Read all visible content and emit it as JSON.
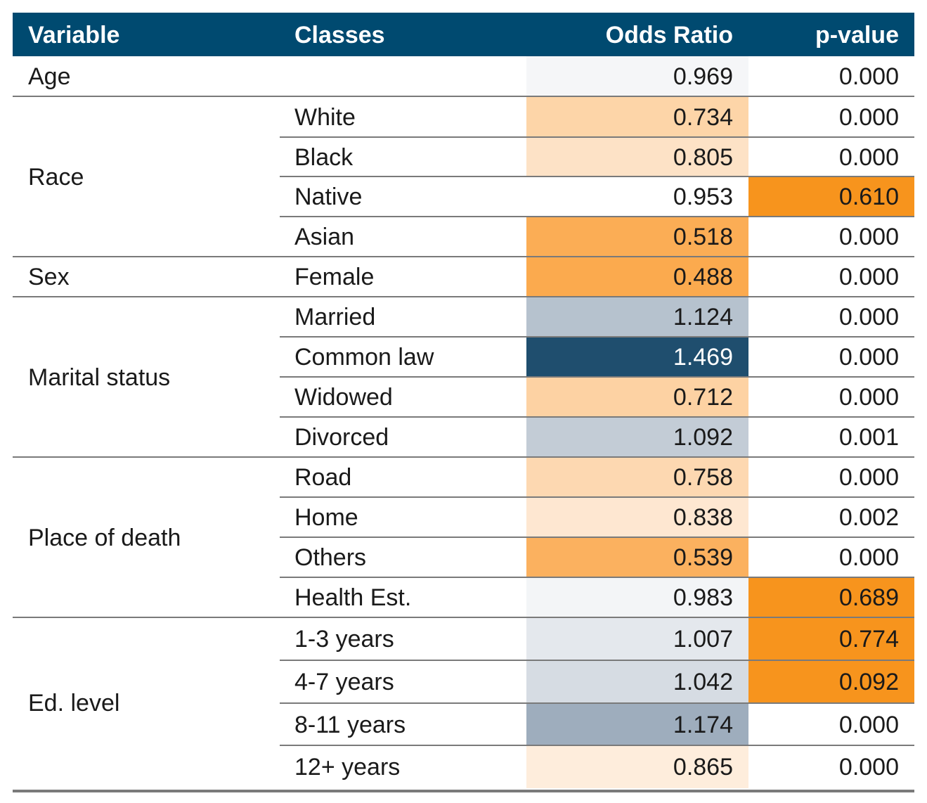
{
  "headers": {
    "variable": "Variable",
    "classes": "Classes",
    "odds_ratio": "Odds Ratio",
    "p_value": "p-value"
  },
  "colors": {
    "header_bg": "#004a70",
    "header_text": "#ffffff",
    "highlight_pvalue": "#f7941d",
    "dark_or": "#1f4e79"
  },
  "groups": [
    {
      "variable": "Age",
      "rows": [
        {
          "class": "",
          "or": "0.969",
          "p": "0.000",
          "or_bg": "#f5f6f8",
          "p_bg": ""
        }
      ]
    },
    {
      "variable": "Race",
      "rows": [
        {
          "class": "White",
          "or": "0.734",
          "p": "0.000",
          "or_bg": "#fdd5a8",
          "p_bg": ""
        },
        {
          "class": "Black",
          "or": "0.805",
          "p": "0.000",
          "or_bg": "#fde2c6",
          "p_bg": ""
        },
        {
          "class": "Native",
          "or": "0.953",
          "p": "0.610",
          "or_bg": "",
          "p_bg": "#f7941d"
        },
        {
          "class": "Asian",
          "or": "0.518",
          "p": "0.000",
          "or_bg": "#fbad55",
          "p_bg": ""
        }
      ]
    },
    {
      "variable": "Sex",
      "rows": [
        {
          "class": "Female",
          "or": "0.488",
          "p": "0.000",
          "or_bg": "#fbaa4e",
          "p_bg": ""
        }
      ]
    },
    {
      "variable": "Marital status",
      "rows": [
        {
          "class": "Married",
          "or": "1.124",
          "p": "0.000",
          "or_bg": "#b6c2ce",
          "p_bg": ""
        },
        {
          "class": "Common law",
          "or": "1.469",
          "p": "0.000",
          "or_bg": "#1f4e6e",
          "p_bg": "",
          "or_dark": true
        },
        {
          "class": "Widowed",
          "or": "0.712",
          "p": "0.000",
          "or_bg": "#fdd2a3",
          "p_bg": ""
        },
        {
          "class": "Divorced",
          "or": "1.092",
          "p": "0.001",
          "or_bg": "#c3ccd6",
          "p_bg": ""
        }
      ]
    },
    {
      "variable": "Place of death",
      "rows": [
        {
          "class": "Road",
          "or": "0.758",
          "p": "0.000",
          "or_bg": "#fdd8b1",
          "p_bg": ""
        },
        {
          "class": "Home",
          "or": "0.838",
          "p": "0.002",
          "or_bg": "#fee7d1",
          "p_bg": ""
        },
        {
          "class": "Others",
          "or": "0.539",
          "p": "0.000",
          "or_bg": "#fbb15f",
          "p_bg": ""
        },
        {
          "class": "Health Est.",
          "or": "0.983",
          "p": "0.689",
          "or_bg": "#f3f5f7",
          "p_bg": "#f7941d"
        }
      ]
    },
    {
      "variable": "Ed. level",
      "rows": [
        {
          "class": "1-3 years",
          "or": "1.007",
          "p": "0.774",
          "or_bg": "#e4e8ed",
          "p_bg": "#f7941d"
        },
        {
          "class": "4-7 years",
          "or": "1.042",
          "p": "0.092",
          "or_bg": "#d6dce3",
          "p_bg": "#f7941d"
        },
        {
          "class": "8-11 years",
          "or": "1.174",
          "p": "0.000",
          "or_bg": "#9eadbd",
          "p_bg": ""
        },
        {
          "class": "12+ years",
          "or": "0.865",
          "p": "0.000",
          "or_bg": "#feeddc",
          "p_bg": ""
        }
      ]
    }
  ],
  "chart_data": {
    "type": "table",
    "columns": [
      "Variable",
      "Classes",
      "Odds Ratio",
      "p-value"
    ],
    "rows": [
      [
        "Age",
        "",
        0.969,
        0.0
      ],
      [
        "Race",
        "White",
        0.734,
        0.0
      ],
      [
        "Race",
        "Black",
        0.805,
        0.0
      ],
      [
        "Race",
        "Native",
        0.953,
        0.61
      ],
      [
        "Race",
        "Asian",
        0.518,
        0.0
      ],
      [
        "Sex",
        "Female",
        0.488,
        0.0
      ],
      [
        "Marital status",
        "Married",
        1.124,
        0.0
      ],
      [
        "Marital status",
        "Common law",
        1.469,
        0.0
      ],
      [
        "Marital status",
        "Widowed",
        0.712,
        0.0
      ],
      [
        "Marital status",
        "Divorced",
        1.092,
        0.001
      ],
      [
        "Place of death",
        "Road",
        0.758,
        0.0
      ],
      [
        "Place of death",
        "Home",
        0.838,
        0.002
      ],
      [
        "Place of death",
        "Others",
        0.539,
        0.0
      ],
      [
        "Place of death",
        "Health Est.",
        0.983,
        0.689
      ],
      [
        "Ed. level",
        "1-3 years",
        1.007,
        0.774
      ],
      [
        "Ed. level",
        "4-7 years",
        1.042,
        0.092
      ],
      [
        "Ed. level",
        "8-11 years",
        1.174,
        0.0
      ],
      [
        "Ed. level",
        "12+ years",
        0.865,
        0.0
      ]
    ]
  }
}
